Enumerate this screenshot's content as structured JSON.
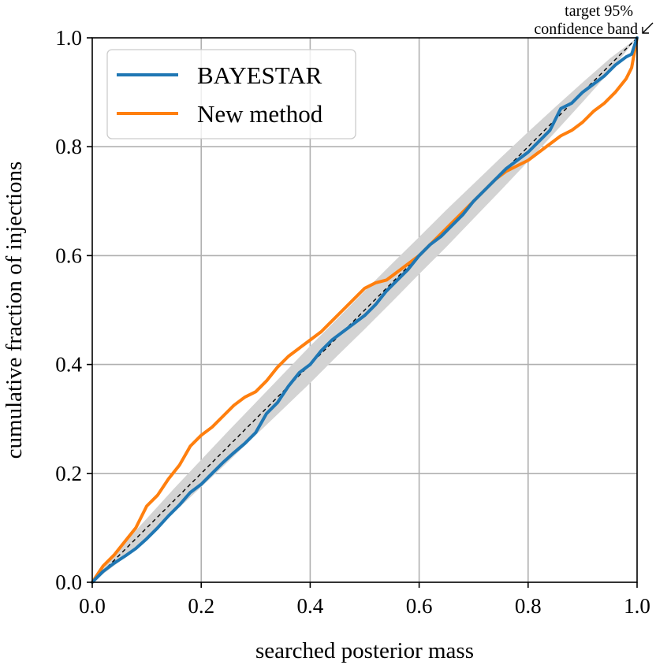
{
  "chart_data": {
    "type": "line",
    "xlabel": "searched posterior mass",
    "ylabel": "cumulative fraction of injections",
    "xlim": [
      0,
      1
    ],
    "ylim": [
      0,
      1
    ],
    "xticks": [
      0.0,
      0.2,
      0.4,
      0.6,
      0.8,
      1.0
    ],
    "yticks": [
      0.0,
      0.2,
      0.4,
      0.6,
      0.8,
      1.0
    ],
    "xtick_labels": [
      "0.0",
      "0.2",
      "0.4",
      "0.6",
      "0.8",
      "1.0"
    ],
    "ytick_labels": [
      "0.0",
      "0.2",
      "0.4",
      "0.6",
      "0.8",
      "1.0"
    ],
    "grid": true,
    "legend_position": "top-left",
    "annotation": {
      "lines": [
        "target 95%",
        "confidence band"
      ],
      "position": "top-right"
    },
    "diagonal": {
      "x": [
        0,
        1
      ],
      "y": [
        0,
        1
      ],
      "style": "dashed",
      "color": "#000000"
    },
    "confidence_band": {
      "color": "#d3d3d3",
      "x": [
        0.0,
        0.05,
        0.1,
        0.15,
        0.2,
        0.25,
        0.3,
        0.35,
        0.4,
        0.45,
        0.5,
        0.55,
        0.6,
        0.65,
        0.7,
        0.75,
        0.8,
        0.85,
        0.9,
        0.95,
        1.0
      ],
      "lower": [
        0.0,
        0.038,
        0.083,
        0.128,
        0.175,
        0.222,
        0.27,
        0.318,
        0.366,
        0.416,
        0.465,
        0.515,
        0.566,
        0.616,
        0.668,
        0.72,
        0.773,
        0.827,
        0.882,
        0.938,
        1.0
      ],
      "upper": [
        0.0,
        0.062,
        0.117,
        0.172,
        0.225,
        0.278,
        0.33,
        0.382,
        0.434,
        0.484,
        0.535,
        0.585,
        0.634,
        0.684,
        0.732,
        0.78,
        0.827,
        0.873,
        0.918,
        0.962,
        1.0
      ]
    },
    "series": [
      {
        "name": "BAYESTAR",
        "color": "#1f77b4",
        "x": [
          0.0,
          0.01,
          0.02,
          0.04,
          0.06,
          0.08,
          0.1,
          0.12,
          0.14,
          0.16,
          0.18,
          0.2,
          0.22,
          0.24,
          0.26,
          0.28,
          0.3,
          0.32,
          0.34,
          0.36,
          0.38,
          0.4,
          0.42,
          0.44,
          0.46,
          0.48,
          0.5,
          0.52,
          0.54,
          0.56,
          0.58,
          0.6,
          0.62,
          0.64,
          0.66,
          0.68,
          0.7,
          0.72,
          0.74,
          0.76,
          0.78,
          0.8,
          0.82,
          0.84,
          0.85,
          0.86,
          0.88,
          0.9,
          0.92,
          0.94,
          0.96,
          0.98,
          0.99,
          1.0
        ],
        "y": [
          0.0,
          0.01,
          0.02,
          0.035,
          0.048,
          0.062,
          0.08,
          0.1,
          0.122,
          0.142,
          0.165,
          0.18,
          0.2,
          0.22,
          0.238,
          0.255,
          0.275,
          0.31,
          0.33,
          0.36,
          0.385,
          0.4,
          0.425,
          0.445,
          0.46,
          0.475,
          0.49,
          0.51,
          0.535,
          0.555,
          0.575,
          0.6,
          0.62,
          0.635,
          0.655,
          0.675,
          0.7,
          0.72,
          0.74,
          0.76,
          0.775,
          0.79,
          0.81,
          0.83,
          0.85,
          0.87,
          0.88,
          0.9,
          0.915,
          0.93,
          0.95,
          0.965,
          0.97,
          1.0
        ]
      },
      {
        "name": "New method",
        "color": "#ff7f0e",
        "x": [
          0.0,
          0.01,
          0.02,
          0.04,
          0.06,
          0.08,
          0.1,
          0.12,
          0.14,
          0.16,
          0.18,
          0.2,
          0.22,
          0.24,
          0.26,
          0.28,
          0.3,
          0.32,
          0.34,
          0.36,
          0.38,
          0.4,
          0.42,
          0.44,
          0.46,
          0.48,
          0.5,
          0.52,
          0.54,
          0.56,
          0.58,
          0.6,
          0.62,
          0.64,
          0.66,
          0.68,
          0.7,
          0.72,
          0.74,
          0.76,
          0.78,
          0.8,
          0.82,
          0.84,
          0.86,
          0.88,
          0.9,
          0.92,
          0.94,
          0.96,
          0.98,
          0.99,
          1.0
        ],
        "y": [
          0.0,
          0.015,
          0.03,
          0.05,
          0.075,
          0.1,
          0.14,
          0.16,
          0.19,
          0.215,
          0.25,
          0.27,
          0.285,
          0.305,
          0.325,
          0.34,
          0.35,
          0.37,
          0.395,
          0.415,
          0.43,
          0.445,
          0.46,
          0.48,
          0.5,
          0.52,
          0.54,
          0.55,
          0.555,
          0.57,
          0.585,
          0.6,
          0.62,
          0.64,
          0.66,
          0.68,
          0.7,
          0.72,
          0.74,
          0.755,
          0.765,
          0.775,
          0.79,
          0.805,
          0.82,
          0.83,
          0.845,
          0.865,
          0.88,
          0.9,
          0.925,
          0.945,
          1.0
        ]
      }
    ]
  }
}
